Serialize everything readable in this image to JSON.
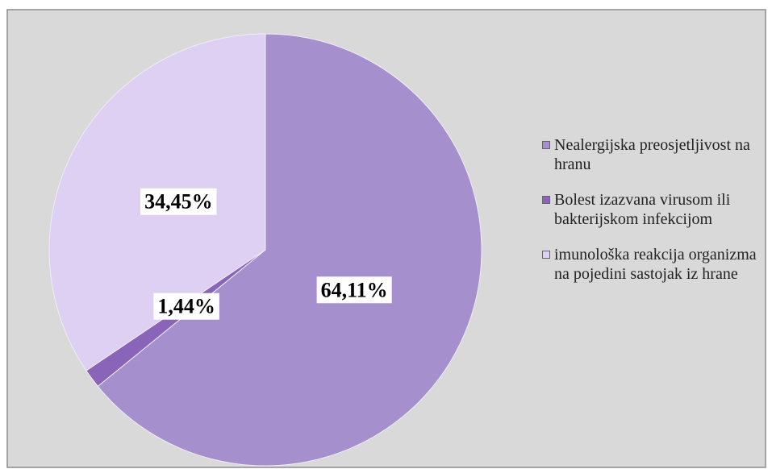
{
  "chart_data": {
    "type": "pie",
    "categories": [
      "Nealergijska preosjetljivost na hranu",
      "Bolest izazvana virusom ili bakterijskom infekcijom",
      "imunološka reakcija organizma na pojedini sastojak iz hrane"
    ],
    "values": [
      64.11,
      1.44,
      34.45
    ],
    "value_labels": [
      "64,11%",
      "1,44%",
      "34,45%"
    ],
    "colors": [
      "#a58fcc",
      "#8a64b8",
      "#ddd0f2"
    ],
    "legend": "right"
  }
}
